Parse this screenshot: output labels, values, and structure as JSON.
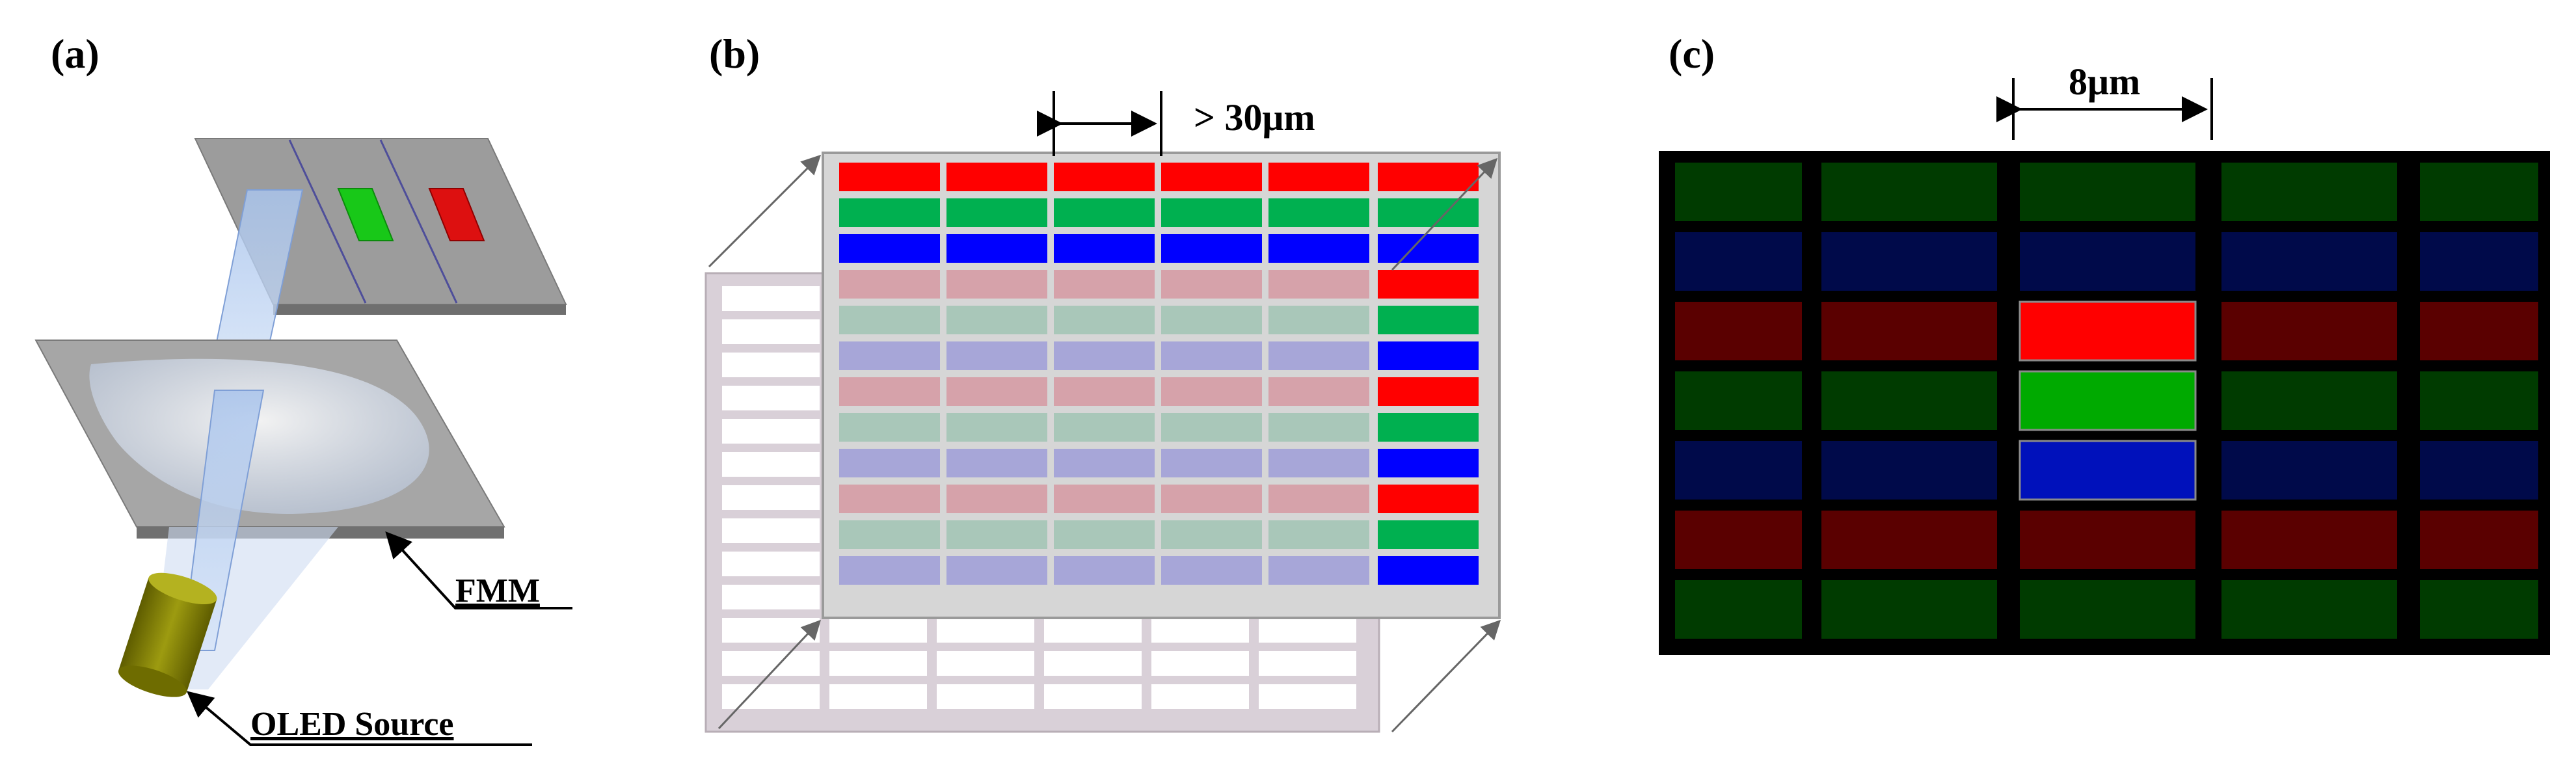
{
  "panels": {
    "a": {
      "label": "(a)",
      "callouts": {
        "fmm": "FMM",
        "oled_source": "OLED Source"
      }
    },
    "b": {
      "label": "(b)",
      "dimension": "> 30μm"
    },
    "c": {
      "label": "(c)",
      "dimension": "8μm"
    }
  },
  "colors": {
    "red": "#ff0000",
    "green": "#00b050",
    "blue": "#0000ff",
    "mask_gray": "#8c8c8c",
    "faded_red": "#d6a2aa",
    "faded_green": "#a9c7b9",
    "faded_blue": "#a7a6d8",
    "dark_red": "#5a0000",
    "dark_green": "#003b00",
    "dark_blue": "#000a4a",
    "pixel_red": "#ff0000",
    "pixel_green": "#00aa00",
    "pixel_blue": "#0011bb",
    "source_olive": "#7b7a00"
  }
}
